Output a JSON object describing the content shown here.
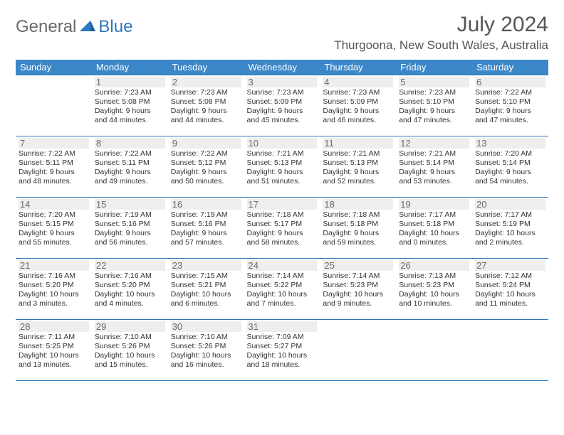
{
  "logo": {
    "part1": "General",
    "part2": "Blue"
  },
  "title": "July 2024",
  "location": "Thurgoona, New South Wales, Australia",
  "colors": {
    "header_bg": "#3b87c8",
    "header_text": "#ffffff",
    "border": "#2f78bd",
    "daynum_bg": "#eeeeee",
    "daynum_text": "#6b6b6b",
    "body_text": "#333333",
    "logo_gray": "#6a6a6a",
    "logo_blue": "#2f78bd"
  },
  "weekdays": [
    "Sunday",
    "Monday",
    "Tuesday",
    "Wednesday",
    "Thursday",
    "Friday",
    "Saturday"
  ],
  "weeks": [
    [
      null,
      {
        "day": "1",
        "sunrise": "Sunrise: 7:23 AM",
        "sunset": "Sunset: 5:08 PM",
        "daylight": "Daylight: 9 hours and 44 minutes."
      },
      {
        "day": "2",
        "sunrise": "Sunrise: 7:23 AM",
        "sunset": "Sunset: 5:08 PM",
        "daylight": "Daylight: 9 hours and 44 minutes."
      },
      {
        "day": "3",
        "sunrise": "Sunrise: 7:23 AM",
        "sunset": "Sunset: 5:09 PM",
        "daylight": "Daylight: 9 hours and 45 minutes."
      },
      {
        "day": "4",
        "sunrise": "Sunrise: 7:23 AM",
        "sunset": "Sunset: 5:09 PM",
        "daylight": "Daylight: 9 hours and 46 minutes."
      },
      {
        "day": "5",
        "sunrise": "Sunrise: 7:23 AM",
        "sunset": "Sunset: 5:10 PM",
        "daylight": "Daylight: 9 hours and 47 minutes."
      },
      {
        "day": "6",
        "sunrise": "Sunrise: 7:22 AM",
        "sunset": "Sunset: 5:10 PM",
        "daylight": "Daylight: 9 hours and 47 minutes."
      }
    ],
    [
      {
        "day": "7",
        "sunrise": "Sunrise: 7:22 AM",
        "sunset": "Sunset: 5:11 PM",
        "daylight": "Daylight: 9 hours and 48 minutes."
      },
      {
        "day": "8",
        "sunrise": "Sunrise: 7:22 AM",
        "sunset": "Sunset: 5:11 PM",
        "daylight": "Daylight: 9 hours and 49 minutes."
      },
      {
        "day": "9",
        "sunrise": "Sunrise: 7:22 AM",
        "sunset": "Sunset: 5:12 PM",
        "daylight": "Daylight: 9 hours and 50 minutes."
      },
      {
        "day": "10",
        "sunrise": "Sunrise: 7:21 AM",
        "sunset": "Sunset: 5:13 PM",
        "daylight": "Daylight: 9 hours and 51 minutes."
      },
      {
        "day": "11",
        "sunrise": "Sunrise: 7:21 AM",
        "sunset": "Sunset: 5:13 PM",
        "daylight": "Daylight: 9 hours and 52 minutes."
      },
      {
        "day": "12",
        "sunrise": "Sunrise: 7:21 AM",
        "sunset": "Sunset: 5:14 PM",
        "daylight": "Daylight: 9 hours and 53 minutes."
      },
      {
        "day": "13",
        "sunrise": "Sunrise: 7:20 AM",
        "sunset": "Sunset: 5:14 PM",
        "daylight": "Daylight: 9 hours and 54 minutes."
      }
    ],
    [
      {
        "day": "14",
        "sunrise": "Sunrise: 7:20 AM",
        "sunset": "Sunset: 5:15 PM",
        "daylight": "Daylight: 9 hours and 55 minutes."
      },
      {
        "day": "15",
        "sunrise": "Sunrise: 7:19 AM",
        "sunset": "Sunset: 5:16 PM",
        "daylight": "Daylight: 9 hours and 56 minutes."
      },
      {
        "day": "16",
        "sunrise": "Sunrise: 7:19 AM",
        "sunset": "Sunset: 5:16 PM",
        "daylight": "Daylight: 9 hours and 57 minutes."
      },
      {
        "day": "17",
        "sunrise": "Sunrise: 7:18 AM",
        "sunset": "Sunset: 5:17 PM",
        "daylight": "Daylight: 9 hours and 58 minutes."
      },
      {
        "day": "18",
        "sunrise": "Sunrise: 7:18 AM",
        "sunset": "Sunset: 5:18 PM",
        "daylight": "Daylight: 9 hours and 59 minutes."
      },
      {
        "day": "19",
        "sunrise": "Sunrise: 7:17 AM",
        "sunset": "Sunset: 5:18 PM",
        "daylight": "Daylight: 10 hours and 0 minutes."
      },
      {
        "day": "20",
        "sunrise": "Sunrise: 7:17 AM",
        "sunset": "Sunset: 5:19 PM",
        "daylight": "Daylight: 10 hours and 2 minutes."
      }
    ],
    [
      {
        "day": "21",
        "sunrise": "Sunrise: 7:16 AM",
        "sunset": "Sunset: 5:20 PM",
        "daylight": "Daylight: 10 hours and 3 minutes."
      },
      {
        "day": "22",
        "sunrise": "Sunrise: 7:16 AM",
        "sunset": "Sunset: 5:20 PM",
        "daylight": "Daylight: 10 hours and 4 minutes."
      },
      {
        "day": "23",
        "sunrise": "Sunrise: 7:15 AM",
        "sunset": "Sunset: 5:21 PM",
        "daylight": "Daylight: 10 hours and 6 minutes."
      },
      {
        "day": "24",
        "sunrise": "Sunrise: 7:14 AM",
        "sunset": "Sunset: 5:22 PM",
        "daylight": "Daylight: 10 hours and 7 minutes."
      },
      {
        "day": "25",
        "sunrise": "Sunrise: 7:14 AM",
        "sunset": "Sunset: 5:23 PM",
        "daylight": "Daylight: 10 hours and 9 minutes."
      },
      {
        "day": "26",
        "sunrise": "Sunrise: 7:13 AM",
        "sunset": "Sunset: 5:23 PM",
        "daylight": "Daylight: 10 hours and 10 minutes."
      },
      {
        "day": "27",
        "sunrise": "Sunrise: 7:12 AM",
        "sunset": "Sunset: 5:24 PM",
        "daylight": "Daylight: 10 hours and 11 minutes."
      }
    ],
    [
      {
        "day": "28",
        "sunrise": "Sunrise: 7:11 AM",
        "sunset": "Sunset: 5:25 PM",
        "daylight": "Daylight: 10 hours and 13 minutes."
      },
      {
        "day": "29",
        "sunrise": "Sunrise: 7:10 AM",
        "sunset": "Sunset: 5:26 PM",
        "daylight": "Daylight: 10 hours and 15 minutes."
      },
      {
        "day": "30",
        "sunrise": "Sunrise: 7:10 AM",
        "sunset": "Sunset: 5:26 PM",
        "daylight": "Daylight: 10 hours and 16 minutes."
      },
      {
        "day": "31",
        "sunrise": "Sunrise: 7:09 AM",
        "sunset": "Sunset: 5:27 PM",
        "daylight": "Daylight: 10 hours and 18 minutes."
      },
      null,
      null,
      null
    ]
  ]
}
